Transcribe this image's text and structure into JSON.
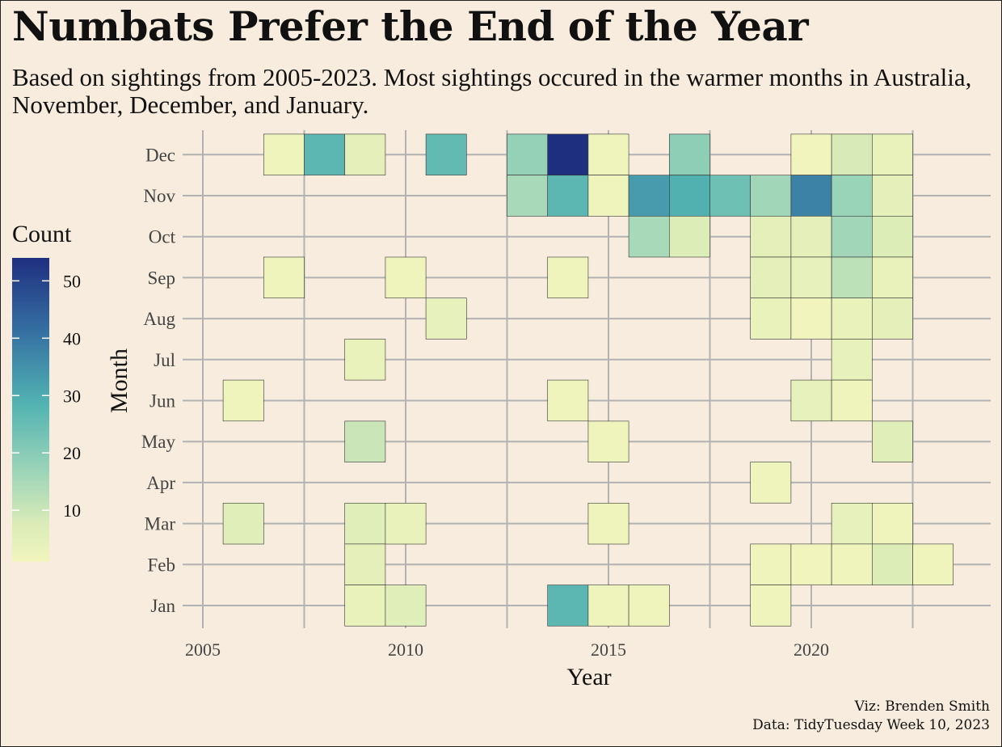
{
  "title": "Numbats Prefer the End of the Year",
  "subtitle": "Based on sightings from 2005-2023. Most sightings occured in the warmer months in Australia, November, December, and January.",
  "caption_line1": "Viz: Brenden Smith",
  "caption_line2": "Data: TidyTuesday Week 10, 2023",
  "colors": {
    "background": "#f7ecdd",
    "grid": "#b2b2b2",
    "tile_stroke": "#333333",
    "scale_low": "#f1f5bd",
    "scale_mid_light": "#9bd4b8",
    "scale_mid": "#52b3b2",
    "scale_mid_dark": "#3672a3",
    "scale_high": "#1f2f80"
  },
  "chart_data": {
    "type": "heatmap",
    "xlabel": "Year",
    "ylabel": "Month",
    "x_ticks": [
      2005,
      2010,
      2015,
      2020
    ],
    "xlim": [
      2005,
      2024
    ],
    "months": [
      "Jan",
      "Feb",
      "Mar",
      "Apr",
      "May",
      "Jun",
      "Jul",
      "Aug",
      "Sep",
      "Oct",
      "Nov",
      "Dec"
    ],
    "legend": {
      "title": "Count",
      "ticks": [
        10,
        20,
        30,
        40,
        50
      ],
      "range": [
        1,
        54
      ],
      "placement": "left"
    },
    "grid": true,
    "cells": [
      {
        "year": 2006,
        "month": "Jun",
        "count": 2
      },
      {
        "year": 2006,
        "month": "Mar",
        "count": 6
      },
      {
        "year": 2007,
        "month": "Dec",
        "count": 2
      },
      {
        "year": 2007,
        "month": "Sep",
        "count": 2
      },
      {
        "year": 2008,
        "month": "Dec",
        "count": 27
      },
      {
        "year": 2009,
        "month": "Dec",
        "count": 5
      },
      {
        "year": 2009,
        "month": "Jul",
        "count": 3
      },
      {
        "year": 2009,
        "month": "May",
        "count": 10
      },
      {
        "year": 2009,
        "month": "Mar",
        "count": 6
      },
      {
        "year": 2009,
        "month": "Feb",
        "count": 5
      },
      {
        "year": 2009,
        "month": "Jan",
        "count": 3
      },
      {
        "year": 2010,
        "month": "Sep",
        "count": 2
      },
      {
        "year": 2010,
        "month": "Mar",
        "count": 3
      },
      {
        "year": 2010,
        "month": "Jan",
        "count": 6
      },
      {
        "year": 2011,
        "month": "Dec",
        "count": 26
      },
      {
        "year": 2011,
        "month": "Aug",
        "count": 4
      },
      {
        "year": 2013,
        "month": "Dec",
        "count": 18
      },
      {
        "year": 2013,
        "month": "Nov",
        "count": 15
      },
      {
        "year": 2014,
        "month": "Dec",
        "count": 54
      },
      {
        "year": 2014,
        "month": "Nov",
        "count": 27
      },
      {
        "year": 2014,
        "month": "Sep",
        "count": 2
      },
      {
        "year": 2014,
        "month": "Jun",
        "count": 2
      },
      {
        "year": 2014,
        "month": "Jan",
        "count": 27
      },
      {
        "year": 2015,
        "month": "Dec",
        "count": 2
      },
      {
        "year": 2015,
        "month": "Nov",
        "count": 2
      },
      {
        "year": 2015,
        "month": "May",
        "count": 2
      },
      {
        "year": 2015,
        "month": "Mar",
        "count": 2
      },
      {
        "year": 2015,
        "month": "Jan",
        "count": 2
      },
      {
        "year": 2016,
        "month": "Nov",
        "count": 33
      },
      {
        "year": 2016,
        "month": "Oct",
        "count": 15
      },
      {
        "year": 2016,
        "month": "Jan",
        "count": 2
      },
      {
        "year": 2017,
        "month": "Dec",
        "count": 19
      },
      {
        "year": 2017,
        "month": "Nov",
        "count": 29
      },
      {
        "year": 2017,
        "month": "Oct",
        "count": 7
      },
      {
        "year": 2018,
        "month": "Nov",
        "count": 24
      },
      {
        "year": 2019,
        "month": "Nov",
        "count": 16
      },
      {
        "year": 2019,
        "month": "Oct",
        "count": 5
      },
      {
        "year": 2019,
        "month": "Sep",
        "count": 5
      },
      {
        "year": 2019,
        "month": "Aug",
        "count": 3
      },
      {
        "year": 2019,
        "month": "Apr",
        "count": 2
      },
      {
        "year": 2019,
        "month": "Feb",
        "count": 2
      },
      {
        "year": 2019,
        "month": "Jan",
        "count": 2
      },
      {
        "year": 2020,
        "month": "Dec",
        "count": 1
      },
      {
        "year": 2020,
        "month": "Nov",
        "count": 38
      },
      {
        "year": 2020,
        "month": "Oct",
        "count": 5
      },
      {
        "year": 2020,
        "month": "Sep",
        "count": 4
      },
      {
        "year": 2020,
        "month": "Aug",
        "count": 1
      },
      {
        "year": 2020,
        "month": "Jun",
        "count": 4
      },
      {
        "year": 2020,
        "month": "Feb",
        "count": 1
      },
      {
        "year": 2021,
        "month": "Dec",
        "count": 8
      },
      {
        "year": 2021,
        "month": "Nov",
        "count": 17
      },
      {
        "year": 2021,
        "month": "Oct",
        "count": 16
      },
      {
        "year": 2021,
        "month": "Sep",
        "count": 12
      },
      {
        "year": 2021,
        "month": "Aug",
        "count": 3
      },
      {
        "year": 2021,
        "month": "Jul",
        "count": 4
      },
      {
        "year": 2021,
        "month": "Jun",
        "count": 2
      },
      {
        "year": 2021,
        "month": "Mar",
        "count": 4
      },
      {
        "year": 2021,
        "month": "Feb",
        "count": 2
      },
      {
        "year": 2022,
        "month": "Dec",
        "count": 3
      },
      {
        "year": 2022,
        "month": "Nov",
        "count": 5
      },
      {
        "year": 2022,
        "month": "Oct",
        "count": 7
      },
      {
        "year": 2022,
        "month": "Sep",
        "count": 3
      },
      {
        "year": 2022,
        "month": "Aug",
        "count": 5
      },
      {
        "year": 2022,
        "month": "May",
        "count": 6
      },
      {
        "year": 2022,
        "month": "Mar",
        "count": 2
      },
      {
        "year": 2022,
        "month": "Feb",
        "count": 7
      },
      {
        "year": 2023,
        "month": "Feb",
        "count": 2
      }
    ]
  }
}
